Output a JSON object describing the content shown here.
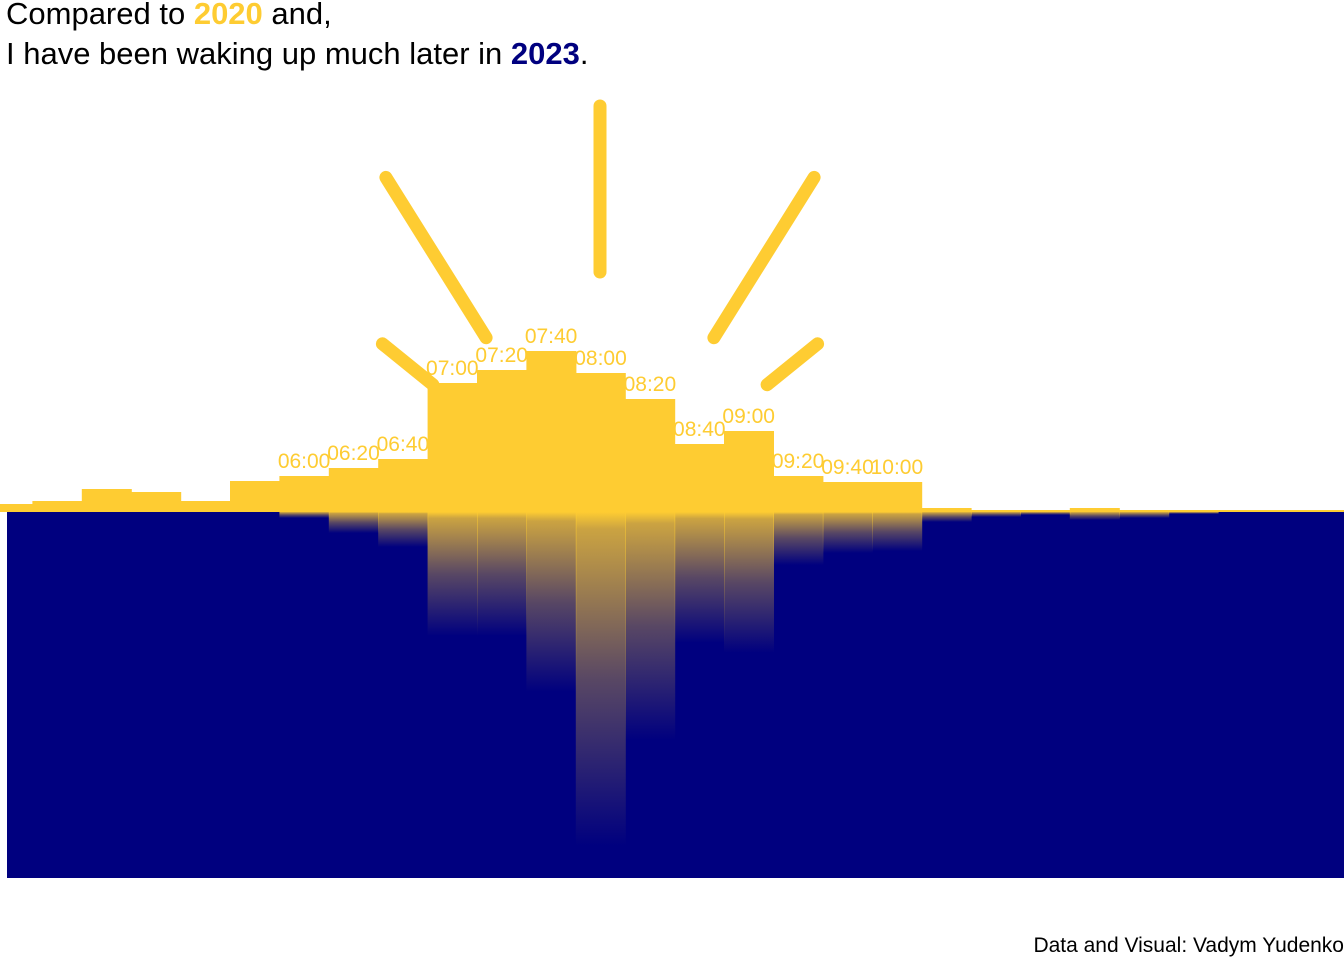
{
  "title": {
    "line1_before": "Compared to ",
    "line1_highlight": "2020",
    "line1_after": " and,",
    "line2_before": "I have been waking up much later in ",
    "line2_highlight": "2023",
    "line2_after": "."
  },
  "caption": "Data and Visual: Vadym Yudenko",
  "colors": {
    "year_2020": "#FECC32",
    "year_2023": "#00007F",
    "text": "#000000",
    "background": "#FFFFFF"
  },
  "chart_data": {
    "type": "bar",
    "subtype": "mirrored histogram (2020 above baseline, 2023 below, shown as sunrise over the sea)",
    "x_unit": "wake-up time, 20-minute bins",
    "y_unit": "relative frequency of wake-ups (no axis printed)",
    "x_tick_labels_shown": [
      "06:00",
      "06:20",
      "06:40",
      "07:00",
      "07:20",
      "07:40",
      "08:00",
      "08:20",
      "08:40",
      "09:00",
      "09:20",
      "09:40",
      "10:00"
    ],
    "categories": [
      "04:00",
      "04:20",
      "04:40",
      "05:00",
      "05:20",
      "05:40",
      "06:00",
      "06:20",
      "06:40",
      "07:00",
      "07:20",
      "07:40",
      "08:00",
      "08:20",
      "08:40",
      "09:00",
      "09:20",
      "09:40",
      "10:00",
      "10:20",
      "10:40",
      "11:00",
      "11:20",
      "11:40",
      "12:00",
      "12:20"
    ],
    "series": [
      {
        "name": "2020",
        "color": "#FECC32",
        "values": [
          0.8,
          1.1,
          2.3,
          2.0,
          1.1,
          3.1,
          3.6,
          4.4,
          5.3,
          12.9,
          14.2,
          16.1,
          13.9,
          11.3,
          6.8,
          8.1,
          3.6,
          3.0,
          3.0,
          0.4,
          0.2,
          0.2,
          0.4,
          0.2,
          0.1,
          0.1
        ]
      },
      {
        "name": "2023",
        "color": "#00007F",
        "values": [
          0,
          0,
          0,
          0,
          0,
          0,
          0.6,
          2.1,
          3.5,
          12.4,
          12.4,
          18.0,
          33.4,
          22.8,
          13.1,
          14.1,
          5.3,
          4.1,
          3.9,
          1.0,
          0.5,
          0.3,
          0.8,
          0.6,
          0.2,
          0
        ]
      }
    ],
    "sun_rays": 5,
    "grid": false,
    "legend": "none (years identified by colored words in the title)"
  }
}
